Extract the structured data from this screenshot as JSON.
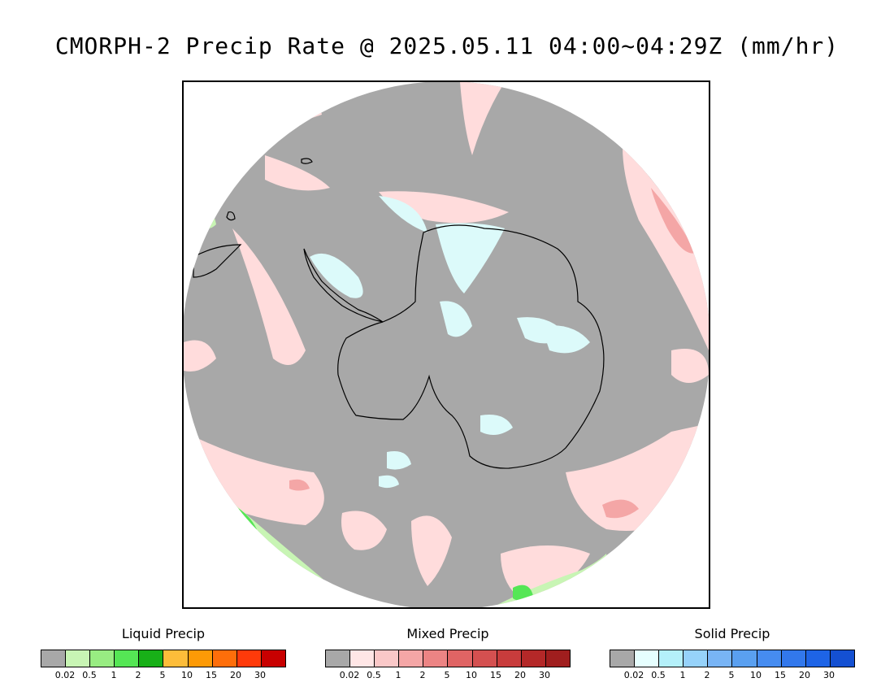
{
  "title": "CMORPH-2 Precip Rate @ 2025.05.11 04:00~04:29Z (mm/hr)",
  "map": {
    "projection": "south-polar-stereographic",
    "colors": {
      "background_no_precip": "#a8a8a8",
      "outside_disk": "#ffffff",
      "coastline": "#000000",
      "mixed_light": "#ffdcdc",
      "mixed_med": "#f4a6a6",
      "solid_light": "#dcfafa",
      "liquid_light": "#c8f5b4",
      "liquid_med": "#55e655",
      "liquid_strong": "#18b018"
    }
  },
  "legends": [
    {
      "title": "Liquid Precip",
      "colors": [
        "#a8a8a8",
        "#c8f5b4",
        "#98ec82",
        "#55e655",
        "#18b018",
        "#fdbd3a",
        "#fd9a06",
        "#fe6e0a",
        "#ff3a0a",
        "#c80000"
      ],
      "ticks": [
        "0.02",
        "0.5",
        "1",
        "2",
        "5",
        "10",
        "15",
        "20",
        "30"
      ]
    },
    {
      "title": "Mixed Precip",
      "colors": [
        "#a8a8a8",
        "#ffe6e6",
        "#fac8c8",
        "#f4a6a6",
        "#ec8484",
        "#e06464",
        "#d45050",
        "#c83c3c",
        "#b42828",
        "#a01e1e"
      ],
      "ticks": [
        "0.02",
        "0.5",
        "1",
        "2",
        "5",
        "10",
        "15",
        "20",
        "30"
      ]
    },
    {
      "title": "Solid Precip",
      "colors": [
        "#a8a8a8",
        "#e6ffff",
        "#b4f0fa",
        "#96d2fa",
        "#78b4f5",
        "#5aa0f0",
        "#468cf0",
        "#3278ec",
        "#1e64e6",
        "#1450d2"
      ],
      "ticks": [
        "0.02",
        "0.5",
        "1",
        "2",
        "5",
        "10",
        "15",
        "20",
        "30"
      ]
    }
  ]
}
